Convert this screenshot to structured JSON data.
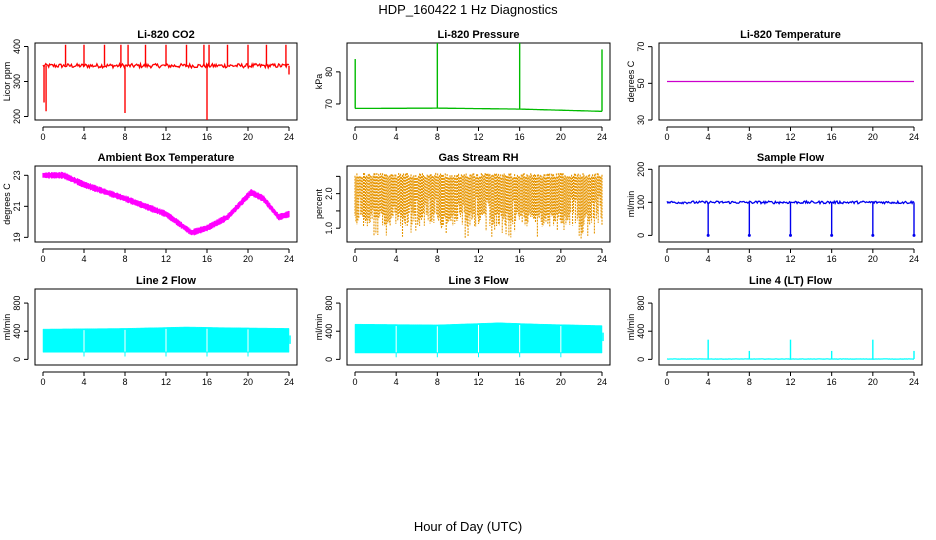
{
  "figure": {
    "title": "HDP_160422  1 Hz Diagnostics",
    "xlabel": "Hour of Day (UTC)"
  },
  "chart_data": [
    {
      "id": "co2",
      "type": "line",
      "title": "Li-820 CO2",
      "ylabel": "Licor ppm",
      "color": "#ff0000",
      "xlim": [
        0,
        24
      ],
      "xticks": [
        0,
        4,
        8,
        12,
        16,
        20,
        24
      ],
      "ylim": [
        190,
        410
      ],
      "yticks": [
        200,
        300,
        400
      ],
      "baseline": 345,
      "noise": 6,
      "spikes": [
        {
          "x": 0.1,
          "v": 240
        },
        {
          "x": 0.3,
          "v": 215
        },
        {
          "x": 2.2,
          "v": 405
        },
        {
          "x": 4.0,
          "v": 405
        },
        {
          "x": 6.0,
          "v": 405
        },
        {
          "x": 7.6,
          "v": 405
        },
        {
          "x": 8.0,
          "v": 210
        },
        {
          "x": 8.3,
          "v": 405
        },
        {
          "x": 10.0,
          "v": 405
        },
        {
          "x": 12.0,
          "v": 405
        },
        {
          "x": 14.0,
          "v": 405
        },
        {
          "x": 15.7,
          "v": 405
        },
        {
          "x": 16.0,
          "v": 190
        },
        {
          "x": 16.2,
          "v": 405
        },
        {
          "x": 18.0,
          "v": 405
        },
        {
          "x": 20.0,
          "v": 405
        },
        {
          "x": 21.8,
          "v": 405
        },
        {
          "x": 23.7,
          "v": 405
        },
        {
          "x": 24.0,
          "v": 320
        }
      ]
    },
    {
      "id": "pressure",
      "type": "line",
      "title": "Li-820 Pressure",
      "ylabel": "kPa",
      "color": "#00bb00",
      "xlim": [
        0,
        24
      ],
      "xticks": [
        0,
        4,
        8,
        12,
        16,
        20,
        24
      ],
      "ylim": [
        65,
        89
      ],
      "yticks": [
        70,
        80
      ],
      "baseline": [
        {
          "x": 0,
          "v": 68.6
        },
        {
          "x": 8,
          "v": 68.7
        },
        {
          "x": 16,
          "v": 68.4
        },
        {
          "x": 24,
          "v": 67.7
        }
      ],
      "spikes": [
        {
          "x": 0.02,
          "v": 84
        },
        {
          "x": 8.0,
          "v": 89
        },
        {
          "x": 16.0,
          "v": 89
        },
        {
          "x": 24.0,
          "v": 87
        }
      ]
    },
    {
      "id": "temperature",
      "type": "line",
      "title": "Li-820 Temperature",
      "ylabel": "degrees C",
      "color": "#cc00cc",
      "xlim": [
        0,
        24
      ],
      "xticks": [
        0,
        4,
        8,
        12,
        16,
        20,
        24
      ],
      "ylim": [
        30,
        72
      ],
      "yticks": [
        30,
        50,
        70
      ],
      "baseline": 51
    },
    {
      "id": "ambient",
      "type": "band",
      "title": "Ambient Box Temperature",
      "ylabel": "degrees C",
      "color": "#ff00ff",
      "xlim": [
        0,
        24
      ],
      "xticks": [
        0,
        4,
        8,
        12,
        16,
        20,
        24
      ],
      "ylim": [
        18.7,
        23.6
      ],
      "yticks": [
        19,
        21,
        23
      ],
      "points": [
        {
          "x": 0,
          "v": 23.0
        },
        {
          "x": 2,
          "v": 23.0
        },
        {
          "x": 4,
          "v": 22.4
        },
        {
          "x": 8,
          "v": 21.5
        },
        {
          "x": 12,
          "v": 20.5
        },
        {
          "x": 14.5,
          "v": 19.3
        },
        {
          "x": 16,
          "v": 19.6
        },
        {
          "x": 18,
          "v": 20.3
        },
        {
          "x": 20.3,
          "v": 21.9
        },
        {
          "x": 21.5,
          "v": 21.5
        },
        {
          "x": 23,
          "v": 20.3
        },
        {
          "x": 24,
          "v": 20.5
        }
      ],
      "spread": 0.45
    },
    {
      "id": "rh",
      "type": "band",
      "title": "Gas Stream RH",
      "ylabel": "percent",
      "color": "#e69500",
      "xlim": [
        0,
        24
      ],
      "xticks": [
        0,
        4,
        8,
        12,
        16,
        20,
        24
      ],
      "ylim": [
        0.6,
        2.8
      ],
      "yticks": [
        1.0,
        1.5,
        2.0,
        2.5
      ],
      "ytickLabels": [
        "1.0",
        "2.0"
      ],
      "ytickLabelValues": [
        1.0,
        2.0
      ],
      "upper": 2.6,
      "lower": 1.05,
      "lowSpikes": 0.7
    },
    {
      "id": "sample",
      "type": "line",
      "title": "Sample Flow",
      "ylabel": "ml/min",
      "color": "#0000ee",
      "xlim": [
        0,
        24
      ],
      "xticks": [
        0,
        4,
        8,
        12,
        16,
        20,
        24
      ],
      "ylim": [
        -20,
        210
      ],
      "yticks": [
        0,
        100,
        200
      ],
      "baseline": 100,
      "noise": 4,
      "spikes": [
        {
          "x": 4,
          "v": 0
        },
        {
          "x": 8,
          "v": 0
        },
        {
          "x": 12,
          "v": 0
        },
        {
          "x": 16,
          "v": 0
        },
        {
          "x": 20,
          "v": 0
        },
        {
          "x": 24,
          "v": 0
        }
      ]
    },
    {
      "id": "line2",
      "type": "fill",
      "title": "Line 2 Flow",
      "ylabel": "ml/min",
      "color": "#00ffff",
      "xlim": [
        0,
        24
      ],
      "xticks": [
        0,
        4,
        8,
        12,
        16,
        20,
        24
      ],
      "ylim": [
        -80,
        1000
      ],
      "yticks": [
        0,
        400,
        800
      ],
      "upper": [
        {
          "x": 0,
          "v": 430
        },
        {
          "x": 8,
          "v": 440
        },
        {
          "x": 14,
          "v": 460
        },
        {
          "x": 18,
          "v": 450
        },
        {
          "x": 24,
          "v": 440
        }
      ],
      "lower": 100,
      "gaps": [
        4,
        8,
        12,
        16,
        20
      ],
      "tail": {
        "x": 24.1,
        "v": 340
      }
    },
    {
      "id": "line3",
      "type": "fill",
      "title": "Line 3 Flow",
      "ylabel": "ml/min",
      "color": "#00ffff",
      "xlim": [
        0,
        24
      ],
      "xticks": [
        0,
        4,
        8,
        12,
        16,
        20,
        24
      ],
      "ylim": [
        -80,
        1000
      ],
      "yticks": [
        0,
        400,
        800
      ],
      "upper": [
        {
          "x": 0,
          "v": 500
        },
        {
          "x": 8,
          "v": 490
        },
        {
          "x": 14,
          "v": 520
        },
        {
          "x": 18,
          "v": 500
        },
        {
          "x": 24,
          "v": 480
        }
      ],
      "lower": 90,
      "gaps": [
        4,
        8,
        12,
        16,
        20
      ],
      "tail": {
        "x": 24.1,
        "v": 380
      }
    },
    {
      "id": "line4",
      "type": "line",
      "title": "Line 4 (LT) Flow",
      "ylabel": "ml/min",
      "color": "#00ffff",
      "xlim": [
        0,
        24
      ],
      "xticks": [
        0,
        4,
        8,
        12,
        16,
        20,
        24
      ],
      "ylim": [
        -80,
        1000
      ],
      "yticks": [
        0,
        400,
        800
      ],
      "baseline": 5,
      "noise": 2,
      "spikes": [
        {
          "x": 4,
          "v": 280
        },
        {
          "x": 8,
          "v": 120
        },
        {
          "x": 12,
          "v": 280
        },
        {
          "x": 16,
          "v": 120
        },
        {
          "x": 20,
          "v": 280
        },
        {
          "x": 24,
          "v": 120
        }
      ]
    }
  ]
}
